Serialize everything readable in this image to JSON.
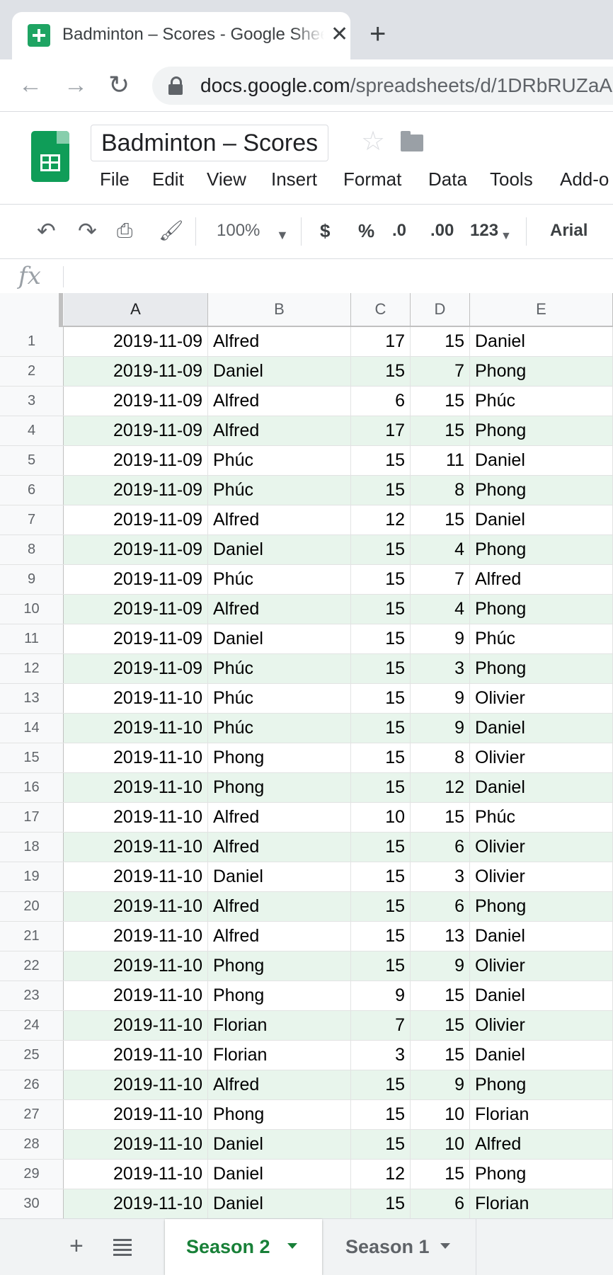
{
  "browser": {
    "tab_title": "Badminton – Scores - Google Sheets",
    "url_host": "docs.google.com",
    "url_path": "/spreadsheets/d/1DRbRUZaA"
  },
  "doc": {
    "title": "Badminton – Scores",
    "menu": [
      "File",
      "Edit",
      "View",
      "Insert",
      "Format",
      "Data",
      "Tools",
      "Add-o"
    ]
  },
  "toolbar": {
    "zoom": "100%",
    "currency": "$",
    "percent": "%",
    "decrease_decimals": ".0",
    "increase_decimals": ".00",
    "more_formats": "123",
    "font": "Arial"
  },
  "grid": {
    "columns": [
      "A",
      "B",
      "C",
      "D",
      "E"
    ],
    "selected_column": "A",
    "rows": [
      [
        "2019-11-09",
        "Alfred",
        "17",
        "15",
        "Daniel"
      ],
      [
        "2019-11-09",
        "Daniel",
        "15",
        "7",
        "Phong"
      ],
      [
        "2019-11-09",
        "Alfred",
        "6",
        "15",
        "Phúc"
      ],
      [
        "2019-11-09",
        "Alfred",
        "17",
        "15",
        "Phong"
      ],
      [
        "2019-11-09",
        "Phúc",
        "15",
        "11",
        "Daniel"
      ],
      [
        "2019-11-09",
        "Phúc",
        "15",
        "8",
        "Phong"
      ],
      [
        "2019-11-09",
        "Alfred",
        "12",
        "15",
        "Daniel"
      ],
      [
        "2019-11-09",
        "Daniel",
        "15",
        "4",
        "Phong"
      ],
      [
        "2019-11-09",
        "Phúc",
        "15",
        "7",
        "Alfred"
      ],
      [
        "2019-11-09",
        "Alfred",
        "15",
        "4",
        "Phong"
      ],
      [
        "2019-11-09",
        "Daniel",
        "15",
        "9",
        "Phúc"
      ],
      [
        "2019-11-09",
        "Phúc",
        "15",
        "3",
        "Phong"
      ],
      [
        "2019-11-10",
        "Phúc",
        "15",
        "9",
        "Olivier"
      ],
      [
        "2019-11-10",
        "Phúc",
        "15",
        "9",
        "Daniel"
      ],
      [
        "2019-11-10",
        "Phong",
        "15",
        "8",
        "Olivier"
      ],
      [
        "2019-11-10",
        "Phong",
        "15",
        "12",
        "Daniel"
      ],
      [
        "2019-11-10",
        "Alfred",
        "10",
        "15",
        "Phúc"
      ],
      [
        "2019-11-10",
        "Alfred",
        "15",
        "6",
        "Olivier"
      ],
      [
        "2019-11-10",
        "Daniel",
        "15",
        "3",
        "Olivier"
      ],
      [
        "2019-11-10",
        "Alfred",
        "15",
        "6",
        "Phong"
      ],
      [
        "2019-11-10",
        "Alfred",
        "15",
        "13",
        "Daniel"
      ],
      [
        "2019-11-10",
        "Phong",
        "15",
        "9",
        "Olivier"
      ],
      [
        "2019-11-10",
        "Phong",
        "9",
        "15",
        "Daniel"
      ],
      [
        "2019-11-10",
        "Florian",
        "7",
        "15",
        "Olivier"
      ],
      [
        "2019-11-10",
        "Florian",
        "3",
        "15",
        "Daniel"
      ],
      [
        "2019-11-10",
        "Alfred",
        "15",
        "9",
        "Phong"
      ],
      [
        "2019-11-10",
        "Phong",
        "15",
        "10",
        "Florian"
      ],
      [
        "2019-11-10",
        "Daniel",
        "15",
        "10",
        "Alfred"
      ],
      [
        "2019-11-10",
        "Daniel",
        "12",
        "15",
        "Phong"
      ],
      [
        "2019-11-10",
        "Daniel",
        "15",
        "6",
        "Florian"
      ]
    ]
  },
  "sheets": {
    "tabs": [
      "Season 2",
      "Season 1"
    ],
    "active": "Season 2"
  },
  "colors": {
    "band": "#e8f5ec",
    "active_tab": "#188038",
    "sheets_green": "#0f9d58"
  }
}
